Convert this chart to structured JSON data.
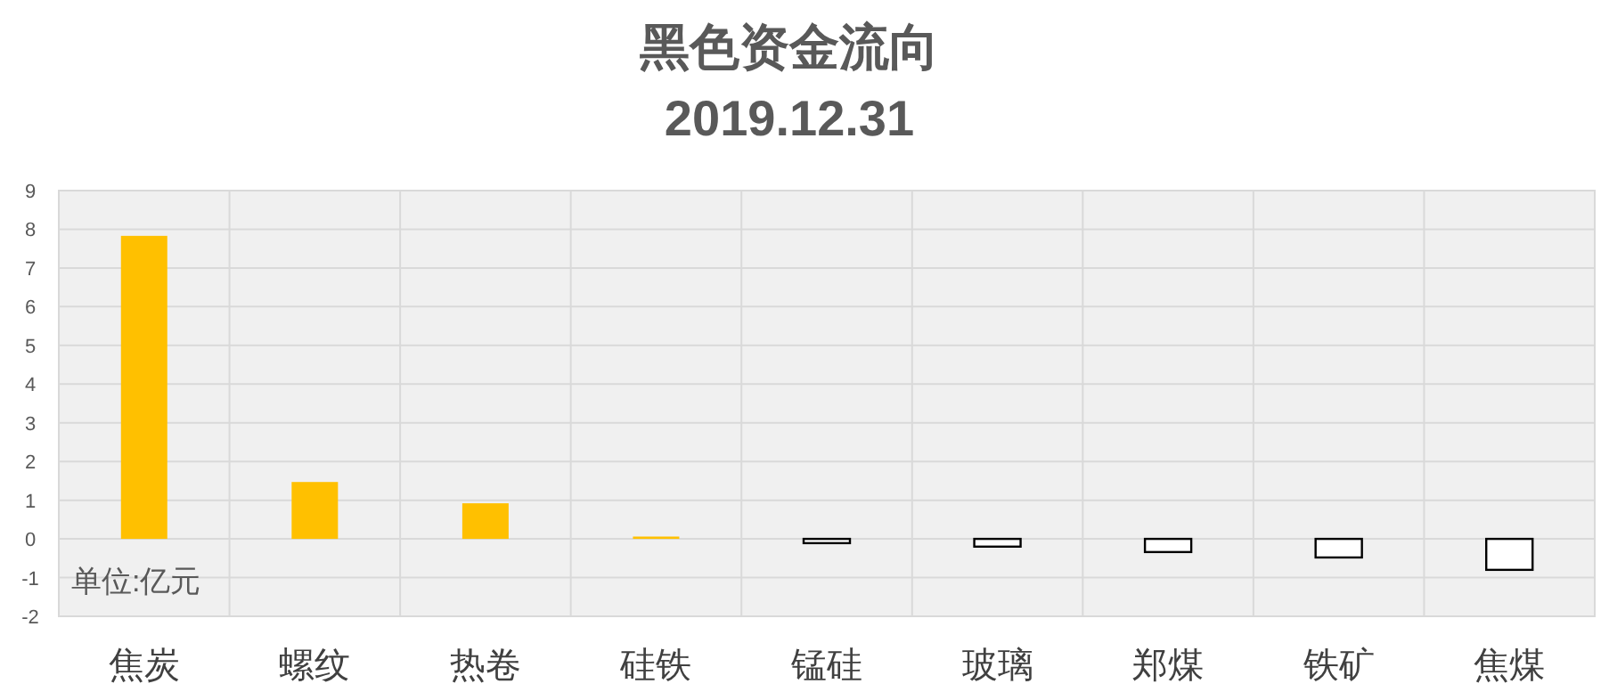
{
  "chart_data": {
    "type": "bar",
    "title": "黑色资金流向",
    "subtitle": "2019.12.31",
    "categories": [
      "焦炭",
      "螺纹",
      "热卷",
      "硅铁",
      "锰硅",
      "玻璃",
      "郑煤",
      "铁矿",
      "焦煤"
    ],
    "values": [
      7.83,
      1.47,
      0.92,
      0.06,
      -0.11,
      -0.2,
      -0.34,
      -0.48,
      -0.8
    ],
    "colors": [
      "#ffc000",
      "#ffc000",
      "#ffc000",
      "#ffc000",
      "#ffffff",
      "#ffffff",
      "#ffffff",
      "#ffffff",
      "#ffffff"
    ],
    "ylim": [
      -2,
      9
    ],
    "yticks": [
      -2,
      -1,
      0,
      1,
      2,
      3,
      4,
      5,
      6,
      7,
      8,
      9
    ],
    "grid": true,
    "annotations": [
      "单位:亿元"
    ]
  }
}
